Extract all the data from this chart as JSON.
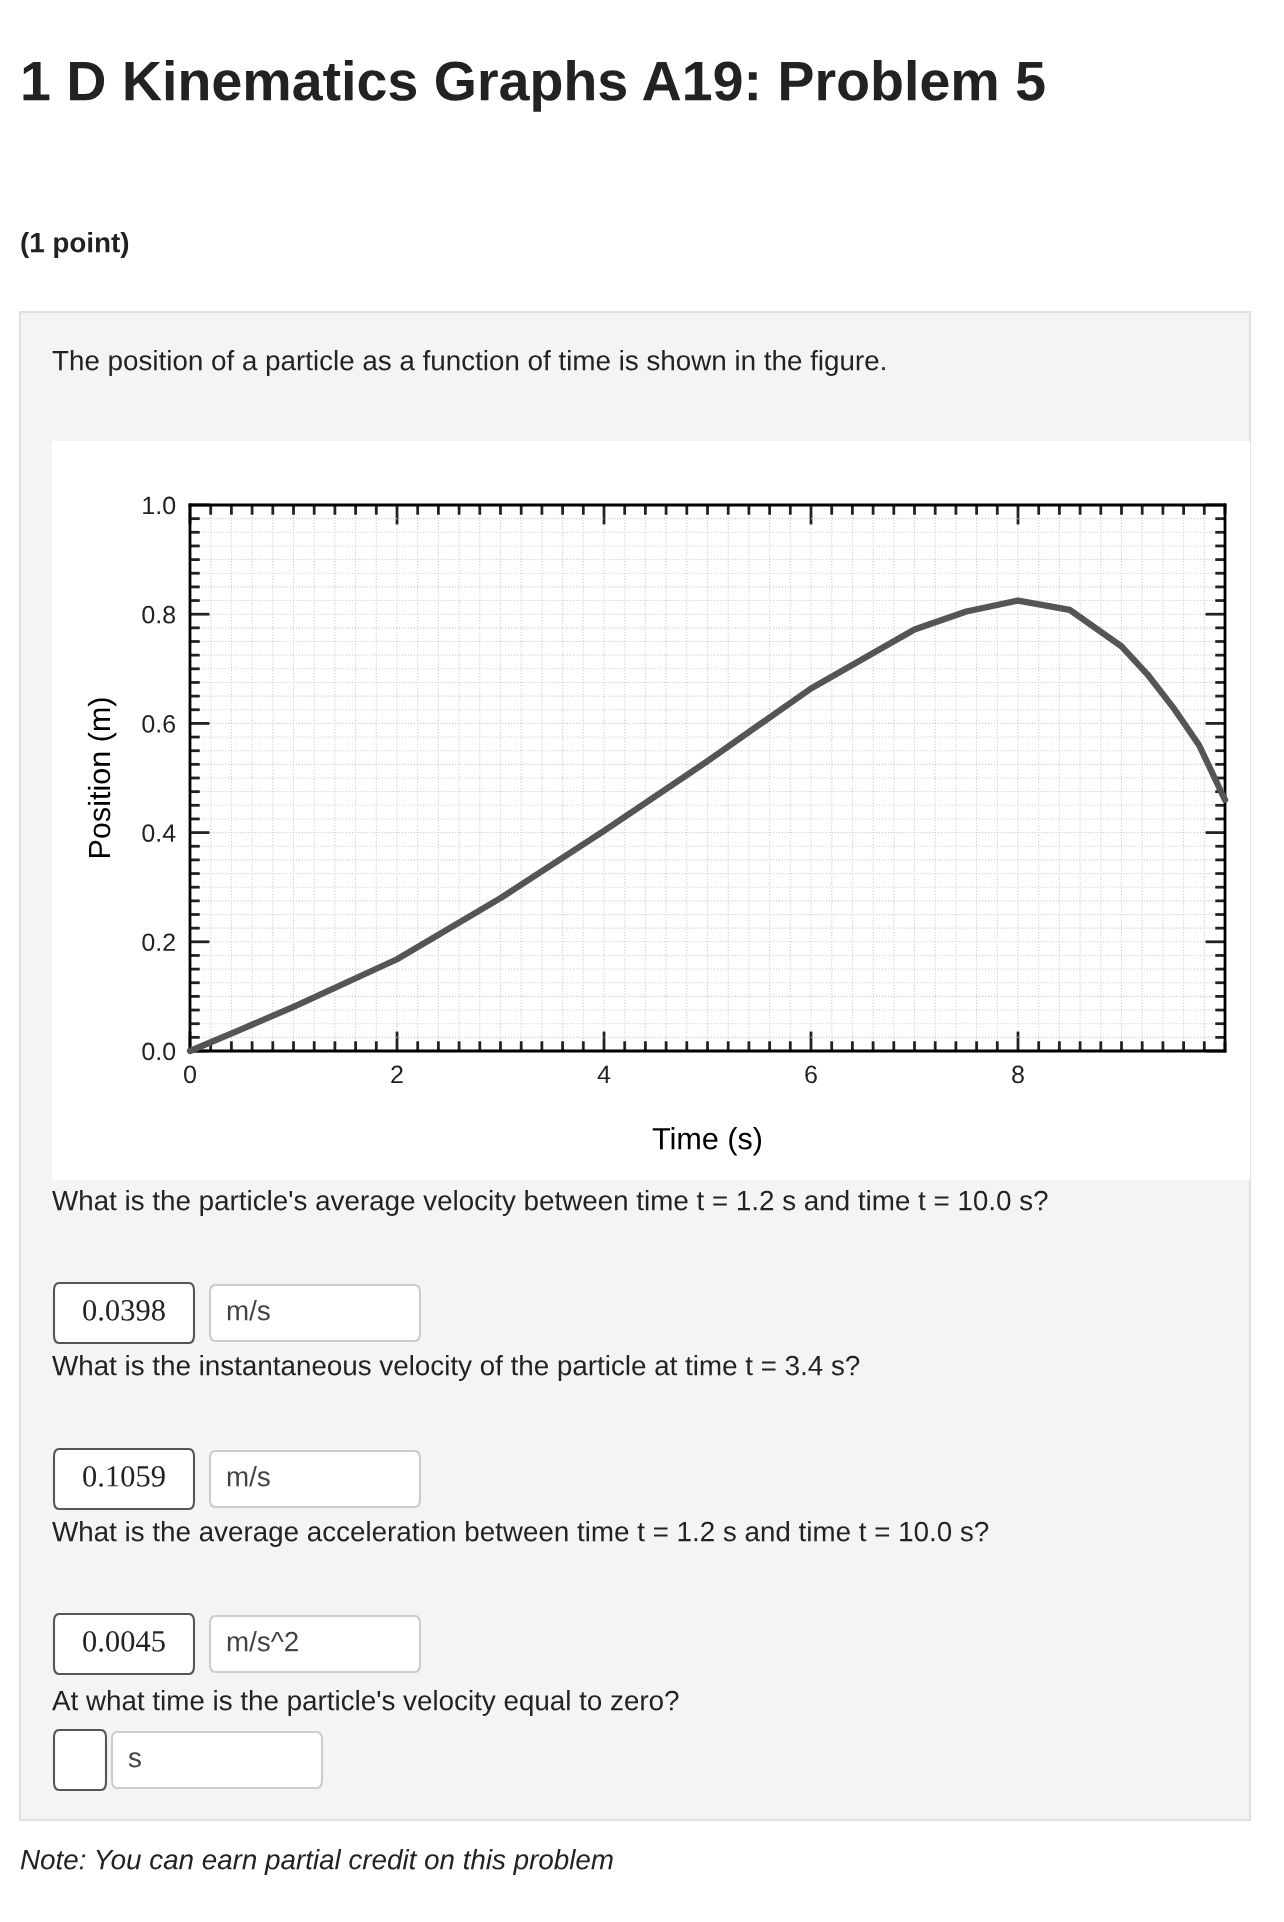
{
  "chart_data": {
    "type": "line",
    "title": "1 D Kinematics Graphs A19: Problem 5",
    "subtitle": "(1 point)",
    "xlabel": "Time (s)",
    "ylabel": "Position (m)",
    "x": [
      0,
      0.5,
      1,
      2,
      3,
      4,
      5,
      6,
      7,
      7.5,
      8,
      8.5,
      9,
      9.25,
      9.5,
      9.75,
      10
    ],
    "series": [
      {
        "color": "#555555",
        "values": [
          0,
          0.04,
          0.081,
          0.168,
          0.28,
          0.403,
          0.531,
          0.664,
          0.772,
          0.805,
          0.825,
          0.808,
          0.741,
          0.69,
          0.629,
          0.56,
          0.46
        ]
      }
    ],
    "xlim": [
      0,
      10
    ],
    "ylim": [
      0,
      1.0
    ],
    "xticks": [
      0,
      2,
      4,
      6,
      8
    ],
    "yticks": [
      {
        "value": 0,
        "label": "0.0"
      },
      {
        "value": 0.2,
        "label": "0.2"
      },
      {
        "value": 0.4,
        "label": "0.4"
      },
      {
        "value": 0.6,
        "label": "0.6"
      },
      {
        "value": 0.8,
        "label": "0.8"
      },
      {
        "value": 1.0,
        "label": "1.0"
      }
    ],
    "grid": true,
    "marker": "none",
    "line_style": "solid",
    "annotations": [
      "The position of a particle as a function of time is shown in the figure.",
      "What is the particle's average velocity between time t = 1.2 s and time t = 10.0 s?",
      "0.0398",
      "m/s",
      "What is the instantaneous velocity of the particle at time t = 3.4 s?",
      "0.1059",
      "m/s",
      "What is the average acceleration between time t = 1.2 s and time t = 10.0 s?",
      "0.0045",
      "m/s^2",
      "At what time is the particle's velocity equal to zero?",
      "s",
      "Note: You can earn partial credit on this problem"
    ]
  }
}
